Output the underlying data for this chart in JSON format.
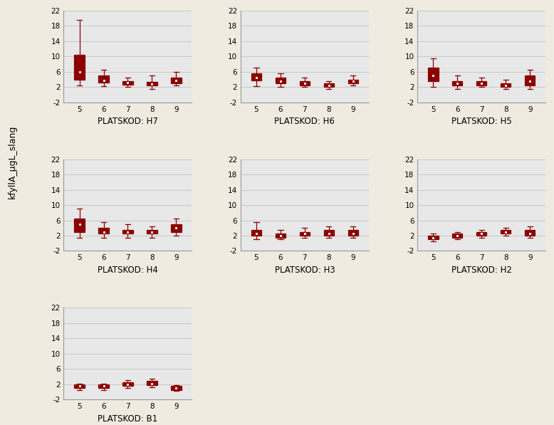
{
  "stations": [
    "H7",
    "H6",
    "H5",
    "H4",
    "H3",
    "H2",
    "B1"
  ],
  "months": [
    5,
    6,
    7,
    8,
    9
  ],
  "ylim": [
    -2,
    22
  ],
  "yticks": [
    -2,
    2,
    6,
    10,
    14,
    18,
    22
  ],
  "background_color": "#f0ebe0",
  "subplot_bg": "#e8e8e8",
  "box_color": "#8b0000",
  "ylabel": "kfyllA_μgL_slang",
  "xlabel_prefix": "PLATSKOD: ",
  "grid_color": "#c8c8c8",
  "layout": [
    [
      "H7",
      "H6",
      "H5"
    ],
    [
      "H4",
      "H3",
      "H2"
    ],
    [
      "B1",
      null,
      null
    ]
  ],
  "box_data": {
    "H7": {
      "5": {
        "q1": 4.0,
        "median": 5.5,
        "q3": 10.5,
        "whislo": 2.5,
        "whishi": 19.5,
        "mean": 6.0
      },
      "6": {
        "q1": 3.2,
        "median": 3.7,
        "q3": 5.0,
        "whislo": 2.2,
        "whishi": 6.5,
        "mean": 3.8
      },
      "7": {
        "q1": 2.7,
        "median": 3.0,
        "q3": 3.5,
        "whislo": 2.0,
        "whishi": 4.5,
        "mean": 3.1
      },
      "8": {
        "q1": 2.5,
        "median": 2.8,
        "q3": 3.3,
        "whislo": 1.5,
        "whishi": 5.0,
        "mean": 2.8
      },
      "9": {
        "q1": 3.0,
        "median": 3.5,
        "q3": 4.5,
        "whislo": 2.5,
        "whishi": 6.0,
        "mean": 3.8
      }
    },
    "H6": {
      "5": {
        "q1": 3.8,
        "median": 4.5,
        "q3": 5.5,
        "whislo": 2.2,
        "whishi": 7.0,
        "mean": 4.5
      },
      "6": {
        "q1": 3.0,
        "median": 3.5,
        "q3": 4.5,
        "whislo": 2.0,
        "whishi": 5.5,
        "mean": 3.5
      },
      "7": {
        "q1": 2.5,
        "median": 3.0,
        "q3": 3.5,
        "whislo": 2.0,
        "whishi": 4.5,
        "mean": 3.0
      },
      "8": {
        "q1": 2.0,
        "median": 2.5,
        "q3": 3.0,
        "whislo": 1.5,
        "whishi": 3.5,
        "mean": 2.5
      },
      "9": {
        "q1": 3.0,
        "median": 3.5,
        "q3": 4.0,
        "whislo": 2.5,
        "whishi": 5.0,
        "mean": 3.5
      }
    },
    "H5": {
      "5": {
        "q1": 3.5,
        "median": 5.0,
        "q3": 7.0,
        "whislo": 2.0,
        "whishi": 9.5,
        "mean": 5.0
      },
      "6": {
        "q1": 2.5,
        "median": 3.0,
        "q3": 3.5,
        "whislo": 1.5,
        "whishi": 5.0,
        "mean": 3.0
      },
      "7": {
        "q1": 2.5,
        "median": 3.0,
        "q3": 3.5,
        "whislo": 2.0,
        "whishi": 4.5,
        "mean": 3.0
      },
      "8": {
        "q1": 2.0,
        "median": 2.5,
        "q3": 3.0,
        "whislo": 1.5,
        "whishi": 4.0,
        "mean": 2.5
      },
      "9": {
        "q1": 2.5,
        "median": 3.5,
        "q3": 5.0,
        "whislo": 1.5,
        "whishi": 6.5,
        "mean": 3.5
      }
    },
    "H4": {
      "5": {
        "q1": 3.0,
        "median": 5.0,
        "q3": 6.5,
        "whislo": 1.5,
        "whishi": 9.0,
        "mean": 5.0
      },
      "6": {
        "q1": 2.5,
        "median": 3.0,
        "q3": 4.0,
        "whislo": 1.5,
        "whishi": 5.5,
        "mean": 3.0
      },
      "7": {
        "q1": 2.5,
        "median": 3.0,
        "q3": 3.5,
        "whislo": 1.5,
        "whishi": 5.0,
        "mean": 3.0
      },
      "8": {
        "q1": 2.5,
        "median": 3.0,
        "q3": 3.5,
        "whislo": 1.5,
        "whishi": 4.5,
        "mean": 3.0
      },
      "9": {
        "q1": 3.0,
        "median": 4.0,
        "q3": 5.0,
        "whislo": 2.0,
        "whishi": 6.5,
        "mean": 4.0
      }
    },
    "H3": {
      "5": {
        "q1": 2.0,
        "median": 2.5,
        "q3": 3.5,
        "whislo": 1.0,
        "whishi": 5.5,
        "mean": 2.5
      },
      "6": {
        "q1": 1.5,
        "median": 2.0,
        "q3": 2.5,
        "whislo": 1.0,
        "whishi": 3.5,
        "mean": 2.0
      },
      "7": {
        "q1": 2.0,
        "median": 2.5,
        "q3": 3.0,
        "whislo": 1.5,
        "whishi": 4.0,
        "mean": 2.5
      },
      "8": {
        "q1": 2.0,
        "median": 2.5,
        "q3": 3.5,
        "whislo": 1.5,
        "whishi": 4.5,
        "mean": 2.5
      },
      "9": {
        "q1": 2.0,
        "median": 2.5,
        "q3": 3.5,
        "whislo": 1.5,
        "whishi": 4.5,
        "mean": 2.5
      }
    },
    "H2": {
      "5": {
        "q1": 1.0,
        "median": 1.5,
        "q3": 2.0,
        "whislo": 0.5,
        "whishi": 2.5,
        "mean": 1.5
      },
      "6": {
        "q1": 1.5,
        "median": 2.0,
        "q3": 2.5,
        "whislo": 1.0,
        "whishi": 3.0,
        "mean": 2.0
      },
      "7": {
        "q1": 2.0,
        "median": 2.5,
        "q3": 3.0,
        "whislo": 1.5,
        "whishi": 3.5,
        "mean": 2.5
      },
      "8": {
        "q1": 2.5,
        "median": 3.0,
        "q3": 3.5,
        "whislo": 2.0,
        "whishi": 4.0,
        "mean": 3.0
      },
      "9": {
        "q1": 2.0,
        "median": 2.5,
        "q3": 3.5,
        "whislo": 1.5,
        "whishi": 4.5,
        "mean": 2.5
      }
    },
    "B1": {
      "5": {
        "q1": 1.0,
        "median": 1.5,
        "q3": 2.0,
        "whislo": 0.5,
        "whishi": 2.2,
        "mean": 1.5
      },
      "6": {
        "q1": 1.0,
        "median": 1.5,
        "q3": 2.0,
        "whislo": 0.5,
        "whishi": 2.2,
        "mean": 1.5
      },
      "7": {
        "q1": 1.5,
        "median": 2.0,
        "q3": 2.5,
        "whislo": 1.0,
        "whishi": 3.0,
        "mean": 2.0
      },
      "8": {
        "q1": 1.8,
        "median": 2.2,
        "q3": 2.8,
        "whislo": 1.2,
        "whishi": 3.5,
        "mean": 2.2
      },
      "9": {
        "q1": 0.5,
        "median": 1.0,
        "q3": 1.5,
        "whislo": 0.2,
        "whishi": 1.8,
        "mean": 1.0
      }
    }
  }
}
